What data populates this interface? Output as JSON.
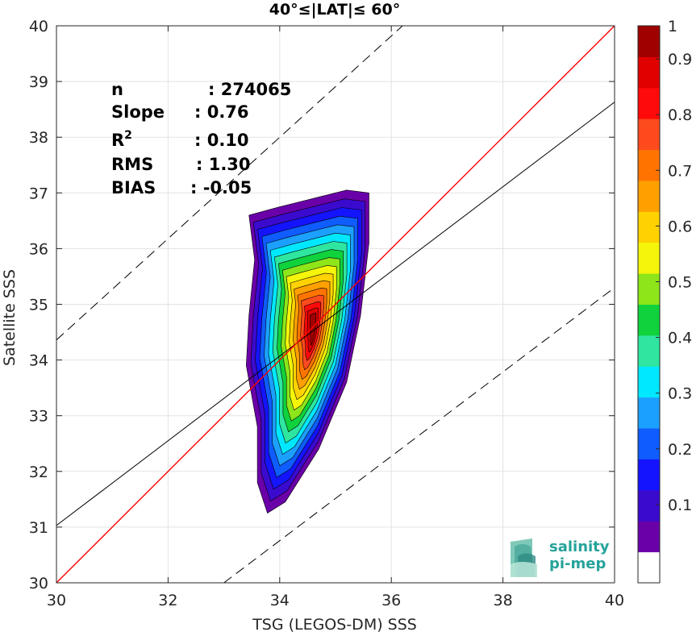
{
  "chart_data": {
    "type": "contour",
    "title": "40°≤|LAT|≤ 60°",
    "xlabel": "TSG (LEGOS-DM) SSS",
    "ylabel": "Satellite SSS",
    "xlim": [
      30,
      40
    ],
    "ylim": [
      30,
      40
    ],
    "xticks": [
      "30",
      "32",
      "34",
      "36",
      "38",
      "40"
    ],
    "yticks": [
      "30",
      "31",
      "32",
      "33",
      "34",
      "35",
      "36",
      "37",
      "38",
      "39",
      "40"
    ],
    "grid": true,
    "stats": [
      {
        "label": "n",
        "value": ": 274065"
      },
      {
        "label": "Slope",
        "value": ": 0.76"
      },
      {
        "label": "R",
        "sup": "2",
        "value": ": 0.10"
      },
      {
        "label": "RMS",
        "value": ": 1.30"
      },
      {
        "label": "BIAS",
        "value": ": -0.05"
      }
    ],
    "lines": {
      "identity": {
        "color": "#ff0000",
        "points": [
          [
            30,
            30
          ],
          [
            40,
            40
          ]
        ]
      },
      "fit": {
        "color": "#000000",
        "points": [
          [
            30,
            31.03
          ],
          [
            40,
            38.63
          ]
        ]
      },
      "upper_dashed": {
        "color": "#000000",
        "points": [
          [
            30,
            34.36
          ],
          [
            37.3,
            41
          ]
        ]
      },
      "lower_dashed": {
        "color": "#000000",
        "points": [
          [
            33,
            30
          ],
          [
            40,
            35.3
          ]
        ]
      }
    },
    "contour_center": [
      34.6,
      34.6
    ],
    "colorbar": {
      "ticks": [
        "0.1",
        "0.2",
        "0.3",
        "0.4",
        "0.5",
        "0.6",
        "0.7",
        "0.8",
        "0.9",
        "1"
      ],
      "colors": [
        "#ffffff",
        "#6a00a8",
        "#3b0acf",
        "#1414ff",
        "#0f5cff",
        "#1ca0ff",
        "#00e8ff",
        "#2fe6a0",
        "#10d23c",
        "#8ee61a",
        "#f4f50a",
        "#ffd200",
        "#ffa000",
        "#ff7400",
        "#ff4a1e",
        "#ff0a0a",
        "#e00000",
        "#a00000"
      ]
    }
  },
  "logo": {
    "line1": "salinity",
    "line2": "pi-mep"
  }
}
